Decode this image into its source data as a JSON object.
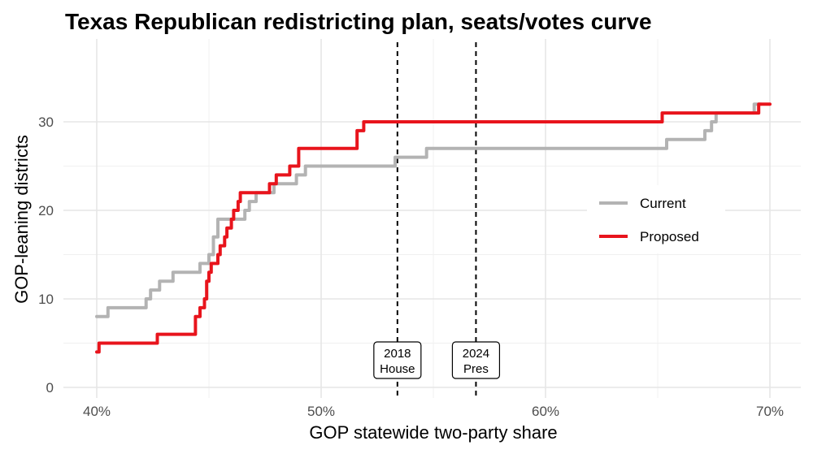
{
  "chart_data": {
    "type": "line",
    "title": "Texas Republican redistricting plan, seats/votes curve",
    "xlabel": "GOP statewide two-party share",
    "ylabel": "GOP-leaning districts",
    "xlim": [
      0.4,
      0.7
    ],
    "ylim": [
      0,
      32
    ],
    "x_ticks": [
      0.4,
      0.5,
      0.6,
      0.7
    ],
    "x_tick_labels": [
      "40%",
      "50%",
      "60%",
      "70%"
    ],
    "y_ticks": [
      0,
      10,
      20,
      30
    ],
    "y_tick_labels": [
      "0",
      "10",
      "20",
      "30"
    ],
    "grid": true,
    "legend_position": "right",
    "series": [
      {
        "name": "Current",
        "color": "#b3b3b3",
        "x": [
          0.4,
          0.404,
          0.405,
          0.42,
          0.422,
          0.423,
          0.424,
          0.425,
          0.428,
          0.433,
          0.434,
          0.445,
          0.446,
          0.449,
          0.45,
          0.452,
          0.454,
          0.465,
          0.466,
          0.467,
          0.468,
          0.47,
          0.471,
          0.478,
          0.479,
          0.488,
          0.489,
          0.492,
          0.493,
          0.532,
          0.533,
          0.546,
          0.547,
          0.653,
          0.654,
          0.67,
          0.671,
          0.673,
          0.674,
          0.675,
          0.676,
          0.677,
          0.692,
          0.693,
          0.695,
          0.696
        ],
        "y": [
          8,
          8,
          9,
          9,
          10,
          10,
          11,
          11,
          12,
          12,
          13,
          13,
          14,
          14,
          15,
          17,
          19,
          19,
          20,
          20,
          21,
          21,
          22,
          22,
          23,
          23,
          24,
          24,
          25,
          25,
          26,
          26,
          27,
          27,
          28,
          28,
          29,
          29,
          30,
          30,
          31,
          31,
          31,
          32,
          32,
          32
        ]
      },
      {
        "name": "Proposed",
        "color": "#e8141c",
        "x": [
          0.4,
          0.401,
          0.426,
          0.427,
          0.443,
          0.444,
          0.446,
          0.448,
          0.449,
          0.45,
          0.451,
          0.452,
          0.454,
          0.455,
          0.456,
          0.457,
          0.458,
          0.46,
          0.461,
          0.462,
          0.463,
          0.464,
          0.466,
          0.467,
          0.468,
          0.476,
          0.477,
          0.479,
          0.48,
          0.485,
          0.486,
          0.489,
          0.49,
          0.515,
          0.516,
          0.518,
          0.519,
          0.651,
          0.652,
          0.694,
          0.695,
          0.7
        ],
        "y": [
          4,
          5,
          5,
          6,
          6,
          8,
          9,
          10,
          12,
          13,
          14,
          14,
          15,
          16,
          16,
          17,
          18,
          19,
          20,
          20,
          21,
          22,
          22,
          22,
          22,
          22,
          23,
          23,
          24,
          24,
          25,
          25,
          27,
          27,
          29,
          29,
          30,
          30,
          31,
          31,
          32,
          32
        ]
      }
    ],
    "annotations": [
      {
        "x": 0.534,
        "line1": "2018",
        "line2": "House"
      },
      {
        "x": 0.569,
        "line1": "2024",
        "line2": "Pres"
      }
    ]
  }
}
